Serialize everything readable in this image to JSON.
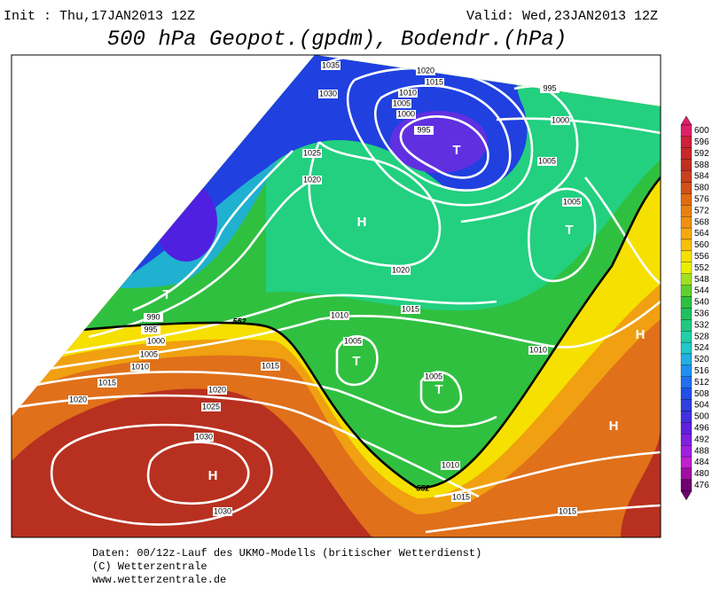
{
  "header": {
    "init": "Init : Thu,17JAN2013 12Z",
    "valid": "Valid: Wed,23JAN2013 12Z",
    "title": "500 hPa Geopot.(gpdm), Bodendr.(hPa)"
  },
  "map": {
    "isobar_labels": [
      1035,
      1030,
      1020,
      1015,
      1010,
      1005,
      1000,
      995,
      995,
      1000,
      1005,
      1025,
      1020,
      1005,
      1020,
      1010,
      1015,
      990,
      995,
      1000,
      1005,
      1010,
      1015,
      1020,
      1015,
      1020,
      1025,
      1030,
      1030,
      1005,
      1005,
      1010,
      1010,
      1015,
      1015
    ],
    "height_labels": [
      552,
      552
    ],
    "centers": [
      "T",
      "H",
      "T",
      "T",
      "T",
      "T",
      "H",
      "H",
      "H"
    ]
  },
  "colorbar": {
    "labels": [
      600,
      596,
      592,
      588,
      584,
      580,
      576,
      572,
      568,
      564,
      560,
      556,
      552,
      548,
      544,
      540,
      536,
      532,
      528,
      524,
      520,
      516,
      512,
      508,
      504,
      500,
      496,
      492,
      488,
      484,
      480,
      476
    ]
  },
  "footer": {
    "lines": [
      "Daten: 00/12z-Lauf des UKMO-Modells (britischer Wetterdienst)",
      "(C) Wetterzentrale",
      "www.wetterzentrale.de"
    ]
  }
}
